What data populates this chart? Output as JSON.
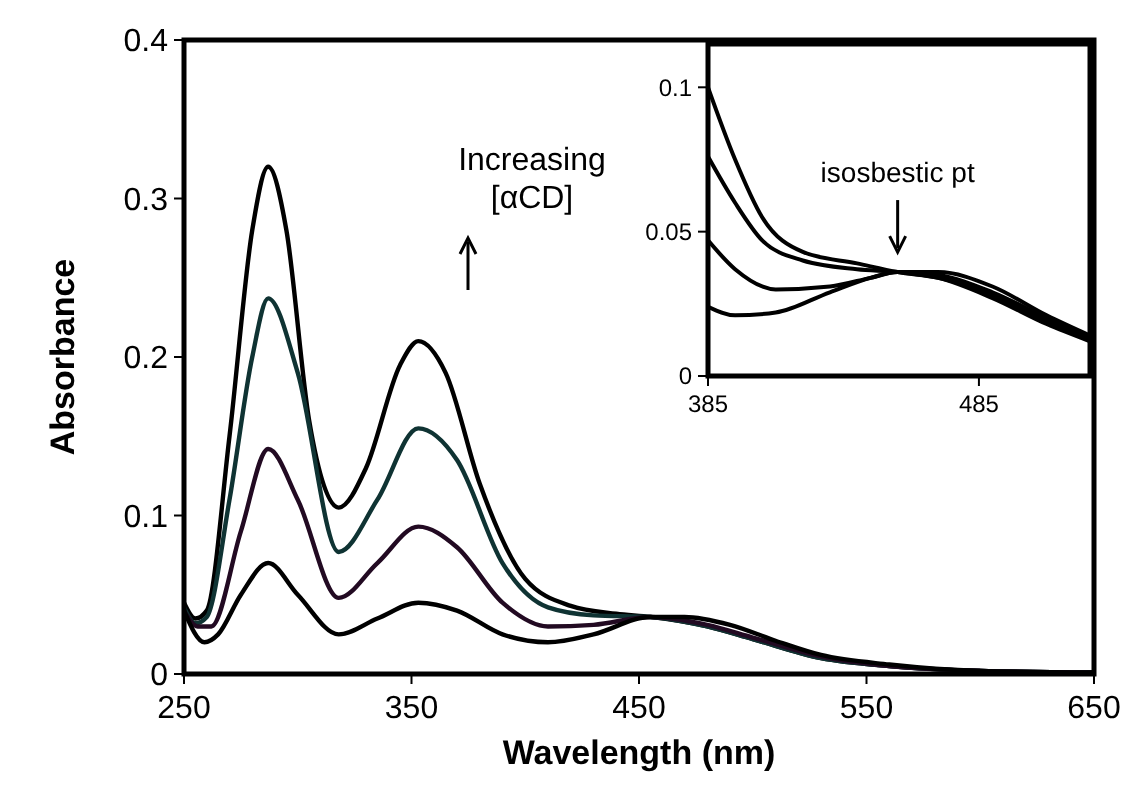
{
  "chart_data": [
    {
      "type": "line",
      "xlabel": "Wavelength (nm)",
      "ylabel": "Absorbance",
      "xlim": [
        250,
        650
      ],
      "xticks": [
        250,
        350,
        450,
        550,
        650
      ],
      "ylim": [
        0,
        0.4
      ],
      "yticks": [
        0,
        0.1,
        0.2,
        0.3,
        0.4
      ],
      "grid": false,
      "marker": "none",
      "line_style": "solid",
      "annotations": [
        "Increasing [αCD]"
      ],
      "series": [
        {
          "color": "#000000",
          "x": [
            250,
            255,
            260,
            270,
            280,
            287,
            295,
            305,
            318,
            330,
            345,
            353,
            365,
            380,
            400,
            420,
            440,
            455,
            480,
            500,
            530,
            560,
            600,
            650
          ],
          "values": [
            0.045,
            0.035,
            0.04,
            0.15,
            0.28,
            0.32,
            0.28,
            0.16,
            0.105,
            0.13,
            0.195,
            0.21,
            0.19,
            0.12,
            0.06,
            0.043,
            0.038,
            0.036,
            0.03,
            0.022,
            0.01,
            0.005,
            0.002,
            0.001
          ]
        },
        {
          "color": "#0f3333",
          "x": [
            250,
            255,
            260,
            270,
            280,
            287,
            300,
            318,
            335,
            353,
            370,
            390,
            410,
            430,
            455,
            480,
            500,
            530,
            560,
            600,
            650
          ],
          "values": [
            0.042,
            0.032,
            0.036,
            0.11,
            0.2,
            0.237,
            0.19,
            0.077,
            0.11,
            0.155,
            0.135,
            0.07,
            0.042,
            0.037,
            0.036,
            0.03,
            0.022,
            0.01,
            0.005,
            0.002,
            0.001
          ]
        },
        {
          "color": "#220a22",
          "x": [
            250,
            256,
            262,
            275,
            287,
            300,
            318,
            335,
            353,
            370,
            390,
            410,
            430,
            455,
            480,
            500,
            530,
            560,
            600,
            650
          ],
          "values": [
            0.04,
            0.03,
            0.03,
            0.09,
            0.142,
            0.11,
            0.048,
            0.07,
            0.093,
            0.08,
            0.045,
            0.03,
            0.031,
            0.036,
            0.031,
            0.023,
            0.011,
            0.005,
            0.002,
            0.001
          ]
        },
        {
          "color": "#000000",
          "x": [
            250,
            259,
            265,
            275,
            287,
            300,
            318,
            335,
            353,
            370,
            390,
            410,
            430,
            455,
            470,
            490,
            510,
            530,
            560,
            600,
            650
          ],
          "values": [
            0.04,
            0.02,
            0.025,
            0.05,
            0.07,
            0.05,
            0.025,
            0.035,
            0.045,
            0.04,
            0.025,
            0.02,
            0.025,
            0.036,
            0.036,
            0.031,
            0.021,
            0.012,
            0.006,
            0.002,
            0.001
          ]
        }
      ]
    },
    {
      "type": "line",
      "xlim": [
        385,
        526
      ],
      "xticks": [
        385,
        485
      ],
      "ylim": [
        0,
        0.115
      ],
      "yticks": [
        0,
        0.05,
        0.1
      ],
      "grid": false,
      "marker": "none",
      "line_style": "solid",
      "annotations": [
        {
          "text": "isosbestic pt",
          "x": 455,
          "y": 0.036
        }
      ],
      "series": [
        {
          "color": "#000000",
          "x": [
            385,
            395,
            405,
            420,
            440,
            455,
            470,
            490,
            510,
            526
          ],
          "values": [
            0.1,
            0.075,
            0.055,
            0.043,
            0.039,
            0.036,
            0.034,
            0.028,
            0.019,
            0.013
          ]
        },
        {
          "color": "#000000",
          "x": [
            385,
            395,
            405,
            420,
            440,
            455,
            470,
            490,
            510,
            526
          ],
          "values": [
            0.076,
            0.06,
            0.047,
            0.04,
            0.037,
            0.036,
            0.034,
            0.027,
            0.018,
            0.012
          ]
        },
        {
          "color": "#000000",
          "x": [
            385,
            395,
            410,
            430,
            445,
            455,
            470,
            490,
            510,
            526
          ],
          "values": [
            0.047,
            0.037,
            0.03,
            0.031,
            0.034,
            0.036,
            0.035,
            0.029,
            0.02,
            0.013
          ]
        },
        {
          "color": "#000000",
          "x": [
            385,
            395,
            410,
            430,
            445,
            455,
            470,
            490,
            510,
            526
          ],
          "values": [
            0.024,
            0.021,
            0.022,
            0.029,
            0.034,
            0.036,
            0.036,
            0.031,
            0.021,
            0.014
          ]
        }
      ]
    }
  ]
}
